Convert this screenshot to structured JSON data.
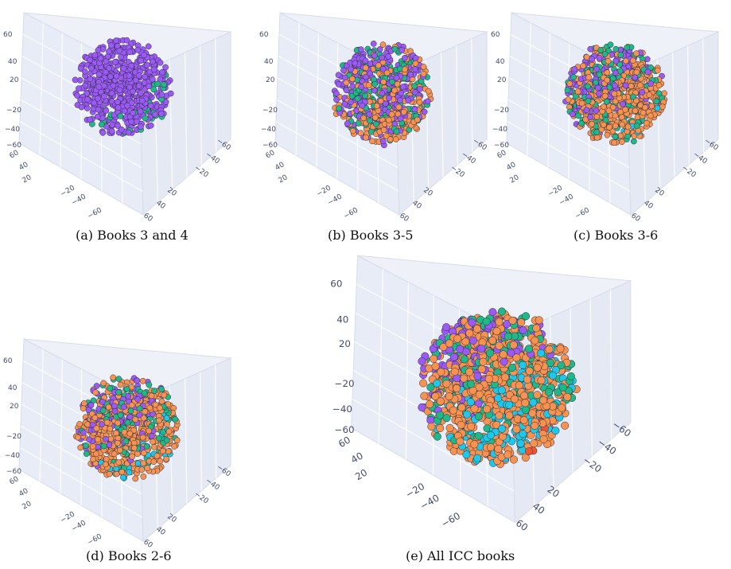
{
  "chart_data": [
    {
      "type": "scatter",
      "caption": "(a) Books 3 and 4",
      "x_ticks": [
        "60",
        "40",
        "20",
        "−20",
        "−40",
        "−60"
      ],
      "y_ticks": [
        "60",
        "40",
        "20",
        "−20",
        "−40",
        "−60"
      ],
      "z_ticks": [
        "−60",
        "−40",
        "−20",
        "20",
        "40",
        "60"
      ],
      "series": [
        {
          "color": "#9b59f5",
          "share": 0.78
        },
        {
          "color": "#20b888",
          "share": 0.22
        }
      ]
    },
    {
      "type": "scatter",
      "caption": "(b) Books 3-5",
      "x_ticks": [
        "60",
        "40",
        "20",
        "−20",
        "−40",
        "−60"
      ],
      "y_ticks": [
        "60",
        "40",
        "20",
        "−20",
        "−40",
        "−60"
      ],
      "z_ticks": [
        "−60",
        "−40",
        "−20",
        "20",
        "40",
        "60"
      ],
      "series": [
        {
          "color": "#9b59f5",
          "share": 0.42
        },
        {
          "color": "#20b888",
          "share": 0.13
        },
        {
          "color": "#f79250",
          "share": 0.45
        }
      ]
    },
    {
      "type": "scatter",
      "caption": "(c) Books 3-6",
      "x_ticks": [
        "60",
        "40",
        "20",
        "−20",
        "−40",
        "−60"
      ],
      "y_ticks": [
        "60",
        "40",
        "20",
        "−20",
        "−40",
        "−60"
      ],
      "z_ticks": [
        "−60",
        "−40",
        "−20",
        "20",
        "40",
        "60"
      ],
      "series": [
        {
          "color": "#9b59f5",
          "share": 0.35
        },
        {
          "color": "#20b888",
          "share": 0.12
        },
        {
          "color": "#f79250",
          "share": 0.38
        },
        {
          "color": "#1fc8e8",
          "share": 0.15
        }
      ]
    },
    {
      "type": "scatter",
      "caption": "(d) Books 2-6",
      "x_ticks": [
        "60",
        "40",
        "20",
        "−20",
        "−40",
        "−60"
      ],
      "y_ticks": [
        "60",
        "40",
        "20",
        "−20",
        "−40",
        "−60"
      ],
      "z_ticks": [
        "−60",
        "−40",
        "−20",
        "20",
        "40",
        "60"
      ],
      "series": [
        {
          "color": "#9b59f5",
          "share": 0.33
        },
        {
          "color": "#20b888",
          "share": 0.1
        },
        {
          "color": "#f79250",
          "share": 0.36
        },
        {
          "color": "#1fc8e8",
          "share": 0.12
        },
        {
          "color": "#ee5533",
          "share": 0.09
        }
      ]
    },
    {
      "type": "scatter",
      "caption": "(e) All ICC books",
      "x_ticks": [
        "60",
        "40",
        "20",
        "−20",
        "−40",
        "−60"
      ],
      "y_ticks": [
        "60",
        "40",
        "20",
        "−20",
        "−40",
        "−60"
      ],
      "z_ticks": [
        "−60",
        "−40",
        "−20",
        "20",
        "40",
        "60"
      ],
      "series": [
        {
          "color": "#9b59f5",
          "share": 0.27
        },
        {
          "color": "#20b888",
          "share": 0.1
        },
        {
          "color": "#f79250",
          "share": 0.33
        },
        {
          "color": "#1fc8e8",
          "share": 0.14
        },
        {
          "color": "#ee5533",
          "share": 0.08
        },
        {
          "color": "#5b63e8",
          "share": 0.08
        }
      ]
    }
  ]
}
